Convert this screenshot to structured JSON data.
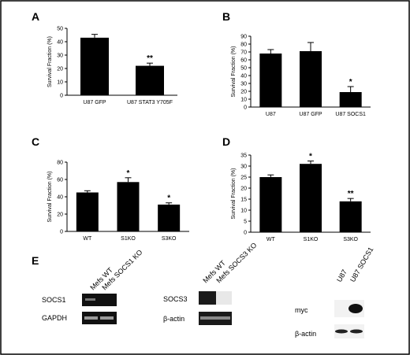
{
  "panels": [
    {
      "id": "A",
      "letter": "A",
      "type": "bar",
      "ylabel": "Survival Fraction (%)",
      "ylim": [
        0,
        50
      ],
      "yticks": [
        0,
        10,
        20,
        30,
        40,
        50
      ],
      "categories": [
        "U87 GFP",
        "U87 STAT3 Y705F"
      ],
      "values": [
        43,
        22
      ],
      "errors": [
        2.5,
        2
      ],
      "significance": [
        "",
        "**"
      ]
    },
    {
      "id": "B",
      "letter": "B",
      "type": "bar",
      "ylabel": "Survival Fraction (%)",
      "ylim": [
        0,
        90
      ],
      "yticks": [
        0,
        10,
        20,
        30,
        40,
        50,
        60,
        70,
        80,
        90
      ],
      "categories": [
        "U87",
        "U87 GFP",
        "U87 SOCS1"
      ],
      "values": [
        68,
        71,
        19
      ],
      "errors": [
        5,
        11,
        7
      ],
      "significance": [
        "",
        "",
        "*"
      ]
    },
    {
      "id": "C",
      "letter": "C",
      "type": "bar",
      "ylabel": "Survival Fraction (%)",
      "ylim": [
        0,
        80
      ],
      "yticks": [
        0,
        20,
        40,
        60,
        80
      ],
      "categories": [
        "WT",
        "S1KO",
        "S3KO"
      ],
      "values": [
        45,
        57,
        31
      ],
      "errors": [
        2,
        5,
        2
      ],
      "significance": [
        "",
        "*",
        "*"
      ]
    },
    {
      "id": "D",
      "letter": "D",
      "type": "bar",
      "ylabel": "Survival Fraction (%)",
      "ylim": [
        0,
        35
      ],
      "yticks": [
        0,
        5,
        10,
        15,
        20,
        25,
        30,
        35
      ],
      "categories": [
        "WT",
        "S1KO",
        "S3KO"
      ],
      "values": [
        25,
        31,
        14
      ],
      "errors": [
        1,
        1.3,
        1.3
      ],
      "significance": [
        "",
        "*",
        "**"
      ]
    }
  ],
  "panel_e": {
    "letter": "E",
    "blot1": {
      "lanes": [
        "Mefs WT",
        "Mefs SOCS1 KO"
      ],
      "rows": [
        "SOCS1",
        "GAPDH"
      ]
    },
    "blot2": {
      "lanes": [
        "Mefs WT",
        "Mefs SOCS3 KO"
      ],
      "rows": [
        "SOCS3",
        "β-actin"
      ]
    },
    "blot3": {
      "lanes": [
        "U87",
        "U87 SOCS1"
      ],
      "rows": [
        "myc",
        "β-actin"
      ]
    }
  }
}
